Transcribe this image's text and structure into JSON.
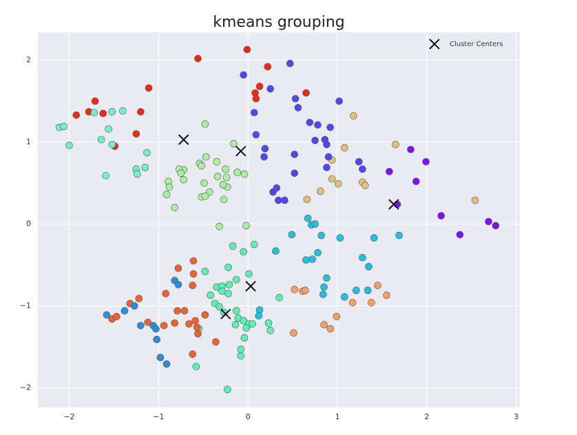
{
  "chart_data": {
    "type": "scatter",
    "title": "kmeans grouping",
    "xlim": [
      -2.35,
      3.04
    ],
    "ylim": [
      -2.24,
      2.34
    ],
    "xticks": [
      {
        "value": -2,
        "label": "−2"
      },
      {
        "value": -1,
        "label": "−1"
      },
      0,
      1,
      2,
      3
    ],
    "yticks": [
      {
        "value": -2,
        "label": "−2"
      },
      {
        "value": -1,
        "label": "−1"
      },
      0,
      1,
      2
    ],
    "grid": true,
    "legend": "upper right",
    "background": "#eaeaf2",
    "series": [
      {
        "color": "#f02a12",
        "marker": "o",
        "x": [
          -1.71,
          -1.92,
          -1.78,
          -1.62,
          -1.49,
          -1.25,
          -1.2,
          -1.11,
          -0.56,
          -0.01,
          0.22,
          0.13,
          0.08,
          0.09,
          0.65
        ],
        "y": [
          1.5,
          1.33,
          1.37,
          1.35,
          0.95,
          1.1,
          1.37,
          1.66,
          2.02,
          2.13,
          1.92,
          1.68,
          1.6,
          1.53,
          1.6
        ]
      },
      {
        "color": "#72f0c8",
        "marker": "o",
        "x": [
          -2.11,
          -2.06,
          -2.0,
          -1.72,
          -1.56,
          -1.52,
          -1.4,
          -1.64,
          -1.59,
          -1.13,
          -1.15,
          -1.25,
          -1.24,
          -1.52
        ],
        "y": [
          1.18,
          1.19,
          0.96,
          1.36,
          1.16,
          1.37,
          1.38,
          1.03,
          0.59,
          0.87,
          0.69,
          0.67,
          0.61,
          0.97
        ]
      },
      {
        "color": "#a8f0a0",
        "marker": "o",
        "x": [
          -0.48,
          -0.16,
          -0.47,
          -0.54,
          -0.72,
          -0.77,
          -0.75,
          -0.89,
          -0.88,
          -0.91,
          -0.72,
          -0.52,
          -0.49,
          -0.43,
          -0.35,
          -0.25,
          -0.24,
          -0.23,
          -0.28,
          -0.34,
          -0.82,
          -0.52,
          -0.48,
          -0.27,
          -0.32,
          -0.02,
          -0.12,
          -0.04
        ],
        "y": [
          1.22,
          0.98,
          0.82,
          0.74,
          0.66,
          0.67,
          0.62,
          0.52,
          0.45,
          0.36,
          0.54,
          0.71,
          0.5,
          0.39,
          0.76,
          0.67,
          0.57,
          0.45,
          0.48,
          0.58,
          0.2,
          0.33,
          0.34,
          0.3,
          -0.03,
          -0.02,
          0.63,
          0.61
        ]
      },
      {
        "color": "#e2c07a",
        "marker": "o",
        "x": [
          1.18,
          1.08,
          1.65,
          0.94,
          0.94,
          1.01,
          1.28,
          1.31,
          0.81,
          0.66,
          2.54
        ],
        "y": [
          1.32,
          0.93,
          0.97,
          0.78,
          0.55,
          0.49,
          0.51,
          0.47,
          0.4,
          0.3,
          0.29
        ]
      },
      {
        "color": "#5048ee",
        "marker": "o",
        "x": [
          -0.05,
          0.47,
          0.25,
          0.53,
          0.07,
          0.56,
          0.69,
          0.78,
          1.02,
          0.92,
          0.86,
          0.88,
          0.75,
          0.09,
          0.19,
          0.18,
          0.52,
          0.52,
          0.9,
          0.88,
          0.34,
          0.28,
          0.32,
          0.41,
          1.24,
          1.28
        ],
        "y": [
          1.82,
          1.96,
          1.65,
          1.53,
          1.36,
          1.42,
          1.24,
          1.21,
          1.5,
          1.18,
          1.03,
          0.97,
          1.02,
          1.09,
          0.92,
          0.82,
          0.85,
          0.62,
          0.82,
          0.69,
          0.29,
          0.39,
          0.44,
          0.29,
          0.76,
          0.67
        ]
      },
      {
        "color": "#8010f8",
        "marker": "o",
        "x": [
          1.58,
          1.67,
          1.82,
          1.99,
          1.88,
          2.16,
          2.37,
          2.69,
          2.77
        ],
        "y": [
          0.64,
          0.24,
          0.91,
          0.76,
          0.52,
          0.1,
          -0.13,
          0.03,
          -0.02
        ]
      },
      {
        "color": "#22c0e0",
        "marker": "o",
        "x": [
          0.67,
          0.71,
          0.75,
          0.49,
          0.65,
          0.72,
          0.78,
          0.82,
          1.03,
          0.88,
          0.85,
          0.84,
          1.08,
          1.21,
          1.28,
          1.35,
          1.41,
          1.69,
          1.34,
          0.31,
          0.13,
          0.12
        ],
        "y": [
          0.07,
          -0.01,
          0.0,
          -0.13,
          -0.44,
          -0.43,
          -0.35,
          -0.14,
          -0.17,
          -0.66,
          -0.77,
          -0.86,
          -0.89,
          -0.81,
          -0.41,
          -0.52,
          -0.17,
          -0.14,
          -0.81,
          -0.33,
          -1.05,
          -1.12
        ]
      },
      {
        "color": "#f4a064",
        "marker": "o",
        "x": [
          1.45,
          1.55,
          1.38,
          1.17,
          0.52,
          0.61,
          0.64,
          0.99,
          0.85,
          0.92,
          0.51
        ],
        "y": [
          -0.75,
          -0.87,
          -0.96,
          -0.96,
          -0.8,
          -0.82,
          -0.81,
          -1.13,
          -1.23,
          -1.28,
          -1.33
        ]
      },
      {
        "color": "#5cf0b4",
        "marker": "o",
        "x": [
          -0.17,
          -0.05,
          0.07,
          -0.22,
          -0.13,
          0.01,
          -0.48,
          -0.35,
          -0.29,
          -0.21,
          -0.29,
          -0.22,
          -0.42,
          -0.37,
          -0.32,
          -0.27,
          -0.11,
          -0.05,
          0.01,
          -0.02,
          0.05,
          0.23,
          0.25,
          -0.14,
          -0.04,
          -0.08,
          -0.08,
          -0.23,
          -0.55,
          -0.58,
          -0.13,
          0.35
        ],
        "y": [
          -0.27,
          -0.34,
          -0.25,
          -0.53,
          -0.68,
          -0.61,
          -0.58,
          -0.77,
          -0.76,
          -0.74,
          -0.82,
          -0.85,
          -0.87,
          -0.97,
          -1.01,
          -1.08,
          -1.15,
          -1.18,
          -1.22,
          -1.27,
          -1.22,
          -1.21,
          -1.3,
          -1.23,
          -1.39,
          -1.53,
          -1.61,
          -2.02,
          -1.28,
          -1.74,
          -1.06,
          -0.9
        ]
      },
      {
        "color": "#ee6232",
        "marker": "o",
        "x": [
          -0.78,
          -0.61,
          -0.61,
          -0.62,
          -0.92,
          -0.79,
          -0.71,
          -0.48,
          -0.82,
          -0.59,
          -0.66,
          -1.12,
          -1.52,
          -1.47,
          -1.22,
          -1.32,
          -0.57,
          -0.56,
          -0.36,
          -0.94,
          -0.62
        ],
        "y": [
          -0.54,
          -0.45,
          -0.61,
          -0.75,
          -0.85,
          -1.06,
          -1.06,
          -1.11,
          -1.21,
          -1.18,
          -1.22,
          -1.2,
          -1.16,
          -1.13,
          -0.91,
          -0.97,
          -1.26,
          -1.34,
          -1.44,
          -1.24,
          -1.59
        ]
      },
      {
        "color": "#2a8ee0",
        "marker": "o",
        "x": [
          -0.82,
          -0.78,
          -1.58,
          -1.38,
          -1.27,
          -1.2,
          -1.06,
          -1.03,
          -1.02,
          -0.98,
          -0.91
        ],
        "y": [
          -0.69,
          -0.74,
          -1.11,
          -1.06,
          -1.0,
          -1.24,
          -1.24,
          -1.28,
          -1.41,
          -1.63,
          -1.71
        ]
      },
      {
        "name": "Cluster Centers",
        "color": "#111111",
        "marker": "x",
        "x": [
          -0.72,
          -0.08,
          1.63,
          0.03,
          -0.25
        ],
        "y": [
          1.03,
          0.89,
          0.24,
          -0.76,
          -1.1
        ]
      }
    ]
  }
}
